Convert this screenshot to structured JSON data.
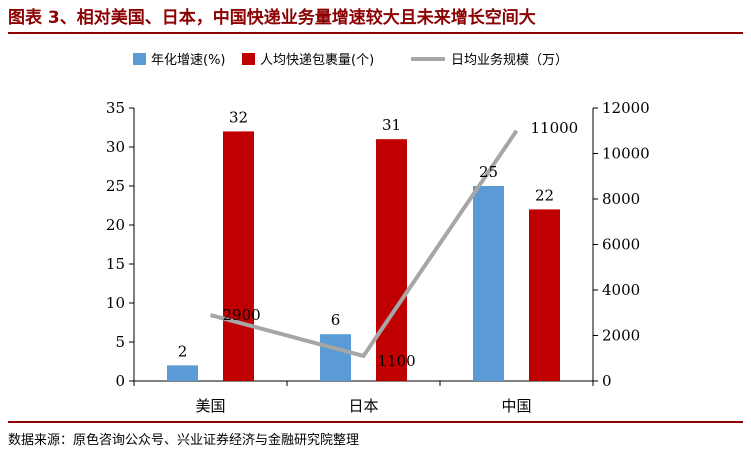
{
  "title": "图表 3、相对美国、日本，中国快递业务量增速较大且未来增长空间大",
  "source": "数据来源：原色咨询公众号、兴业证券经济与金融研究院整理",
  "colors": {
    "growth": "#5b9bd5",
    "parcels": "#c00000",
    "volume": "#a6a6a6",
    "title": "#8b0000"
  },
  "chart_data": {
    "type": "bar",
    "categories": [
      "美国",
      "日本",
      "中国"
    ],
    "series": [
      {
        "name": "年化增速(%)",
        "type": "bar",
        "axis": "left",
        "values": [
          2,
          6,
          25
        ],
        "labels": [
          "2",
          "6",
          "25"
        ]
      },
      {
        "name": "人均快递包裹量(个)",
        "type": "bar",
        "axis": "left",
        "values": [
          32,
          31,
          22
        ],
        "labels": [
          "32",
          "31",
          "22"
        ]
      },
      {
        "name": "日均业务规模（万）",
        "type": "line",
        "axis": "right",
        "values": [
          2900,
          1100,
          11000
        ],
        "labels": [
          "2900",
          "1100",
          "11000"
        ]
      }
    ],
    "y_left": {
      "min": 0,
      "max": 35,
      "ticks": [
        "0",
        "5",
        "10",
        "15",
        "20",
        "25",
        "30",
        "35"
      ]
    },
    "y_right": {
      "min": 0,
      "max": 12000,
      "ticks": [
        "0",
        "2000",
        "4000",
        "6000",
        "8000",
        "10000",
        "12000"
      ]
    },
    "legend": "top",
    "grid": false
  }
}
